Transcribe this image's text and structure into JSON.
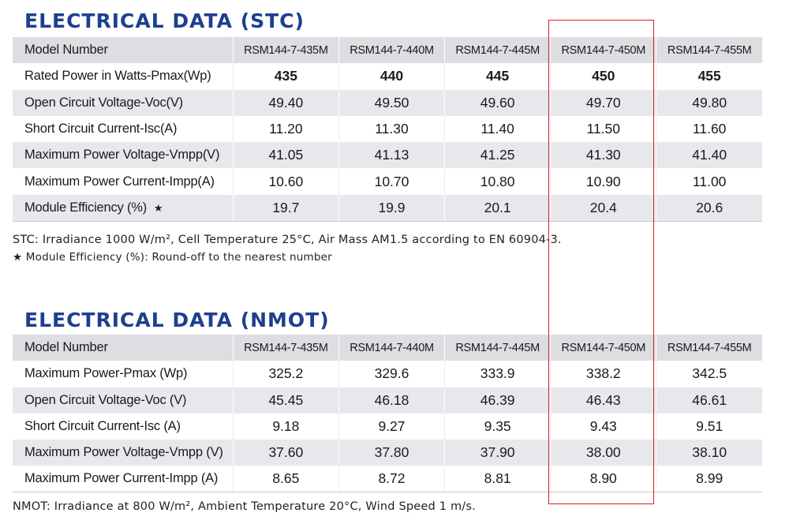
{
  "stc": {
    "title": "ELECTRICAL DATA (STC)",
    "header": {
      "label": "Model Number",
      "models": [
        "RSM144-7-435M",
        "RSM144-7-440M",
        "RSM144-7-445M",
        "RSM144-7-450M",
        "RSM144-7-455M"
      ]
    },
    "rows": [
      {
        "label": "Rated Power in Watts-Pmax(Wp)",
        "values": [
          "435",
          "440",
          "445",
          "450",
          "455"
        ]
      },
      {
        "label": "Open Circuit Voltage-Voc(V)",
        "values": [
          "49.40",
          "49.50",
          "49.60",
          "49.70",
          "49.80"
        ]
      },
      {
        "label": "Short Circuit Current-Isc(A)",
        "values": [
          "11.20",
          "11.30",
          "11.40",
          "11.50",
          "11.60"
        ]
      },
      {
        "label": "Maximum Power Voltage-Vmpp(V)",
        "values": [
          "41.05",
          "41.13",
          "41.25",
          "41.30",
          "41.40"
        ]
      },
      {
        "label": "Maximum Power Current-Impp(A)",
        "values": [
          "10.60",
          "10.70",
          "10.80",
          "10.90",
          "11.00"
        ]
      },
      {
        "label": "Module Efficiency (%)",
        "label_star": "★",
        "values": [
          "19.7",
          "19.9",
          "20.1",
          "20.4",
          "20.6"
        ]
      }
    ],
    "notes": [
      "STC: Irradiance 1000 W/m², Cell Temperature 25°C, Air Mass AM1.5 according to EN 60904-3.",
      "★ Module Efficiency (%): Round-off to the nearest number"
    ]
  },
  "nmot": {
    "title": "ELECTRICAL DATA (NMOT)",
    "header": {
      "label": "Model Number",
      "models": [
        "RSM144-7-435M",
        "RSM144-7-440M",
        "RSM144-7-445M",
        "RSM144-7-450M",
        "RSM144-7-455M"
      ]
    },
    "rows": [
      {
        "label": "Maximum Power-Pmax (Wp)",
        "values": [
          "325.2",
          "329.6",
          "333.9",
          "338.2",
          "342.5"
        ]
      },
      {
        "label": "Open Circuit Voltage-Voc (V)",
        "values": [
          "45.45",
          "46.18",
          "46.39",
          "46.43",
          "46.61"
        ]
      },
      {
        "label": "Short Circuit Current-Isc (A)",
        "values": [
          "9.18",
          "9.27",
          "9.35",
          "9.43",
          "9.51"
        ]
      },
      {
        "label": "Maximum Power Voltage-Vmpp (V)",
        "values": [
          "37.60",
          "37.80",
          "37.90",
          "38.00",
          "38.10"
        ]
      },
      {
        "label": "Maximum Power Current-Impp (A)",
        "values": [
          "8.65",
          "8.72",
          "8.81",
          "8.90",
          "8.99"
        ]
      }
    ],
    "notes": [
      "NMOT: Irradiance at 800 W/m², Ambient Temperature 20°C, Wind Speed 1 m/s."
    ]
  },
  "colors": {
    "title": "#1d3f8f",
    "row_band": "#e6e8eb",
    "highlight": "#d32020"
  }
}
